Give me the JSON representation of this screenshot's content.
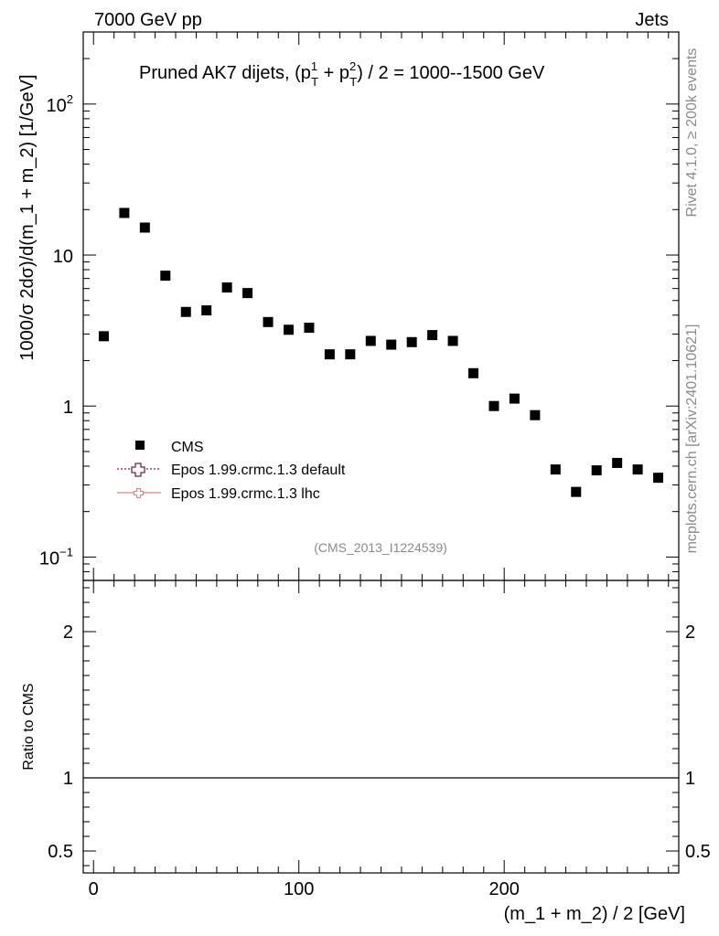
{
  "header": {
    "left": "7000 GeV pp",
    "right": "Jets"
  },
  "side": {
    "rivet": "Rivet 4.1.0, ≥ 200k events",
    "mcplots": "mcplots.cern.ch [arXiv:2401.10621]"
  },
  "chart_data": {
    "type": "scatter",
    "title_main": "Pruned AK7 dijets, (p",
    "title_sup1": "1",
    "title_sub1": "T",
    "title_plus": " + p",
    "title_sup2": "2",
    "title_sub2": "T",
    "title_tail": ") / 2 = 1000--1500 GeV",
    "ylabel": "1000/σ   2dσ)/d(m_1 + m_2) [1/GeV]",
    "xlabel": "(m_1 + m_2) / 2 [GeV]",
    "ratio_ylabel": "Ratio to CMS",
    "analysis_id": "(CMS_2013_I1224539)",
    "xlim": [
      -5,
      285
    ],
    "ylim": [
      0.07,
      300
    ],
    "yscale": "log",
    "ratio_ylim": [
      0.35,
      2.35
    ],
    "x_ticks": [
      {
        "v": 0,
        "label": "0"
      },
      {
        "v": 100,
        "label": "100"
      },
      {
        "v": 200,
        "label": "200"
      }
    ],
    "y_ticks": [
      {
        "v": 0.1,
        "base": "10",
        "exp": "−1"
      },
      {
        "v": 1,
        "base": "1",
        "exp": ""
      },
      {
        "v": 10,
        "base": "10",
        "exp": ""
      },
      {
        "v": 100,
        "base": "10",
        "exp": "2"
      }
    ],
    "ratio_ticks": [
      {
        "v": 0.5,
        "label": "0.5"
      },
      {
        "v": 1,
        "label": "1"
      },
      {
        "v": 2,
        "label": "2"
      }
    ],
    "series": [
      {
        "name": "CMS",
        "marker": "square",
        "color": "#000000",
        "x": [
          5,
          15,
          25,
          35,
          45,
          55,
          65,
          75,
          85,
          95,
          105,
          115,
          125,
          135,
          145,
          155,
          165,
          175,
          185,
          195,
          205,
          215,
          225,
          235,
          245,
          255,
          265,
          275
        ],
        "y": [
          2.9,
          19.0,
          15.2,
          7.3,
          4.2,
          4.3,
          6.1,
          5.6,
          3.6,
          3.2,
          3.3,
          2.2,
          2.2,
          2.7,
          2.55,
          2.65,
          2.95,
          2.7,
          1.65,
          1.0,
          1.12,
          0.87,
          0.38,
          0.27,
          0.375,
          0.42,
          0.38,
          0.335
        ]
      },
      {
        "name": "Epos 1.99.crmc.1.3 default",
        "marker": "open-cross",
        "color": "#7b2040",
        "x": [],
        "y": []
      },
      {
        "name": "Epos 1.99.crmc.1.3 lhc",
        "marker": "open-cross",
        "color": "#e88080",
        "x": [],
        "y": []
      }
    ]
  }
}
